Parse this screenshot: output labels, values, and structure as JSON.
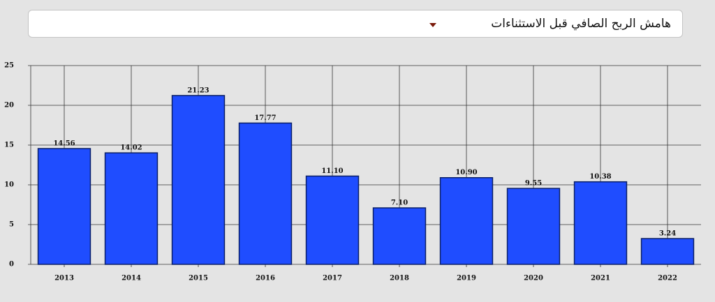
{
  "dropdown": {
    "label": "هامش الربح الصافي قبل الاستثناءات"
  },
  "chart_data": {
    "type": "bar",
    "categories": [
      "2013",
      "2014",
      "2015",
      "2016",
      "2017",
      "2018",
      "2019",
      "2020",
      "2021",
      "2022"
    ],
    "values": [
      14.56,
      14.02,
      21.23,
      17.77,
      11.1,
      7.1,
      10.9,
      9.55,
      10.38,
      3.24
    ],
    "value_labels": [
      "14.56",
      "14.02",
      "21.23",
      "17.77",
      "11.10",
      "7.10",
      "10.90",
      "9.55",
      "10.38",
      "3.24"
    ],
    "color": "#1f4dff",
    "ylim": [
      0,
      25
    ],
    "yticks": [
      0,
      5,
      10,
      15,
      20,
      25
    ],
    "grid": true
  }
}
